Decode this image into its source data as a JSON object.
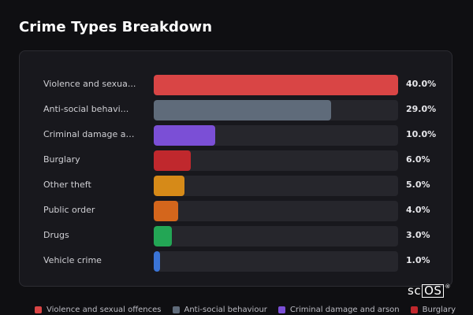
{
  "title": "Crime Types Breakdown",
  "logo": {
    "main": "sc",
    "boxed": "OS",
    "mark": "®"
  },
  "chart_data": {
    "type": "bar",
    "orientation": "horizontal",
    "categories": [
      "Violence and sexual offences",
      "Anti-social behaviour",
      "Criminal damage and arson",
      "Burglary",
      "Other theft",
      "Public order",
      "Drugs",
      "Vehicle crime"
    ],
    "display_labels": [
      "Violence and sexua...",
      "Anti-social behavi...",
      "Criminal damage an...",
      "Burglary",
      "Other theft",
      "Public order",
      "Drugs",
      "Vehicle crime"
    ],
    "values": [
      40.0,
      29.0,
      10.0,
      6.0,
      5.0,
      4.0,
      3.0,
      1.0
    ],
    "value_labels": [
      "40.0%",
      "29.0%",
      "10.0%",
      "6.0%",
      "5.0%",
      "4.0%",
      "3.0%",
      "1.0%"
    ],
    "colors": [
      "#d94545",
      "#5f6b7a",
      "#7b4fd6",
      "#c0282d",
      "#d68a18",
      "#d4661c",
      "#23a655",
      "#3a74d6"
    ],
    "max_value": 40.0,
    "legend_position": "bottom"
  },
  "legend": [
    {
      "label": "Violence and sexual offences",
      "color": "#d94545"
    },
    {
      "label": "Anti-social behaviour",
      "color": "#5f6b7a"
    },
    {
      "label": "Criminal damage and arson",
      "color": "#7b4fd6"
    },
    {
      "label": "Burglary",
      "color": "#c0282d"
    }
  ]
}
